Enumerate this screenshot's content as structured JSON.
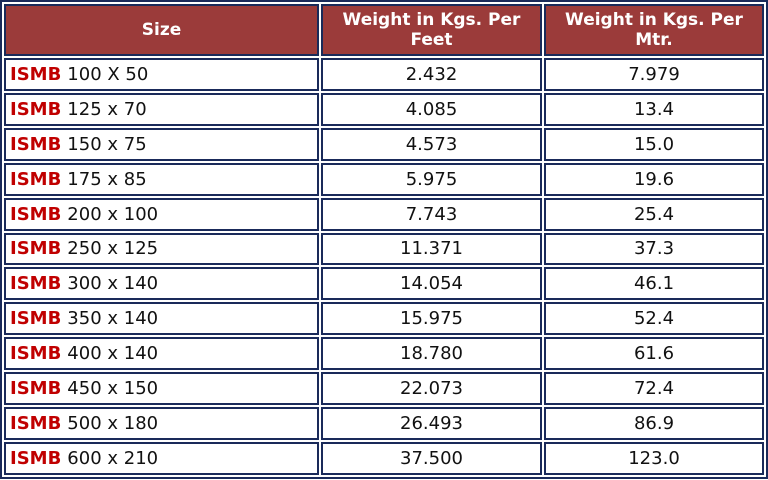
{
  "table": {
    "headers": [
      "Size",
      "Weight in Kgs. Per Feet",
      "Weight in Kgs. Per Mtr."
    ],
    "rows": [
      {
        "prefix": "ISMB",
        "size": "100 X 50",
        "per_feet": "2.432",
        "per_mtr": "7.979"
      },
      {
        "prefix": "ISMB",
        "size": "125 x 70",
        "per_feet": "4.085",
        "per_mtr": "13.4"
      },
      {
        "prefix": "ISMB",
        "size": "150 x 75",
        "per_feet": "4.573",
        "per_mtr": "15.0"
      },
      {
        "prefix": "ISMB",
        "size": "175 x 85",
        "per_feet": "5.975",
        "per_mtr": "19.6"
      },
      {
        "prefix": "ISMB",
        "size": "200 x 100",
        "per_feet": "7.743",
        "per_mtr": "25.4"
      },
      {
        "prefix": "ISMB",
        "size": "250 x 125",
        "per_feet": "11.371",
        "per_mtr": "37.3"
      },
      {
        "prefix": "ISMB",
        "size": "300 x 140",
        "per_feet": "14.054",
        "per_mtr": "46.1"
      },
      {
        "prefix": "ISMB",
        "size": "350 x 140",
        "per_feet": "15.975",
        "per_mtr": "52.4"
      },
      {
        "prefix": "ISMB",
        "size": "400 x 140",
        "per_feet": "18.780",
        "per_mtr": "61.6"
      },
      {
        "prefix": "ISMB",
        "size": "450 x 150",
        "per_feet": "22.073",
        "per_mtr": "72.4"
      },
      {
        "prefix": "ISMB",
        "size": "500 x 180",
        "per_feet": "26.493",
        "per_mtr": "86.9"
      },
      {
        "prefix": "ISMB",
        "size": "600 x 210",
        "per_feet": "37.500",
        "per_mtr": "123.0"
      }
    ]
  },
  "colors": {
    "header_bg": "#9b3b3a",
    "header_text": "#ffffff",
    "border": "#1a2a5a",
    "prefix": "#c00000"
  }
}
